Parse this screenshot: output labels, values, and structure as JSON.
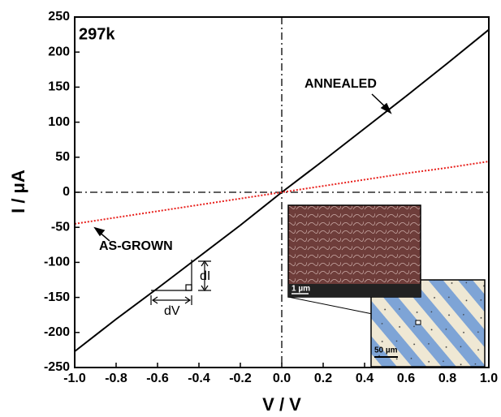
{
  "chart_data": {
    "type": "line",
    "xlabel": "V / V",
    "ylabel": "I / μA",
    "x": [
      -1.0,
      -0.8,
      -0.6,
      -0.4,
      -0.2,
      0,
      0.2,
      0.4,
      0.6,
      0.8,
      1.0
    ],
    "series": [
      {
        "name": "ANNEALED",
        "color": "#000000",
        "values": [
          -227,
          -181,
          -137,
          -92,
          -47,
          0,
          45,
          91,
          137,
          184,
          232
        ]
      },
      {
        "name": "AS-GROWN",
        "color": "#e8201c",
        "values": [
          -45,
          -36,
          -27,
          -18,
          -9,
          0,
          9,
          18,
          27,
          35,
          44
        ]
      }
    ],
    "xlim": [
      -1.0,
      1.0
    ],
    "xticks": [
      {
        "value": -1.0,
        "label": "-1.0"
      },
      -0.8,
      -0.6,
      -0.4,
      -0.2,
      {
        "value": 0,
        "label": "0.0"
      },
      0.2,
      0.4,
      0.6,
      0.8,
      {
        "value": 1.0,
        "label": "1.0"
      }
    ],
    "ylim": [
      -250,
      250
    ],
    "yticks": [
      -250,
      -200,
      -150,
      -100,
      -50,
      0,
      50,
      100,
      150,
      200,
      250
    ],
    "annotations": [
      {
        "text": "297k"
      },
      {
        "text": "dI"
      },
      {
        "text": "dV"
      },
      {
        "text": "1 µm"
      },
      {
        "text": "50 µm"
      }
    ]
  }
}
